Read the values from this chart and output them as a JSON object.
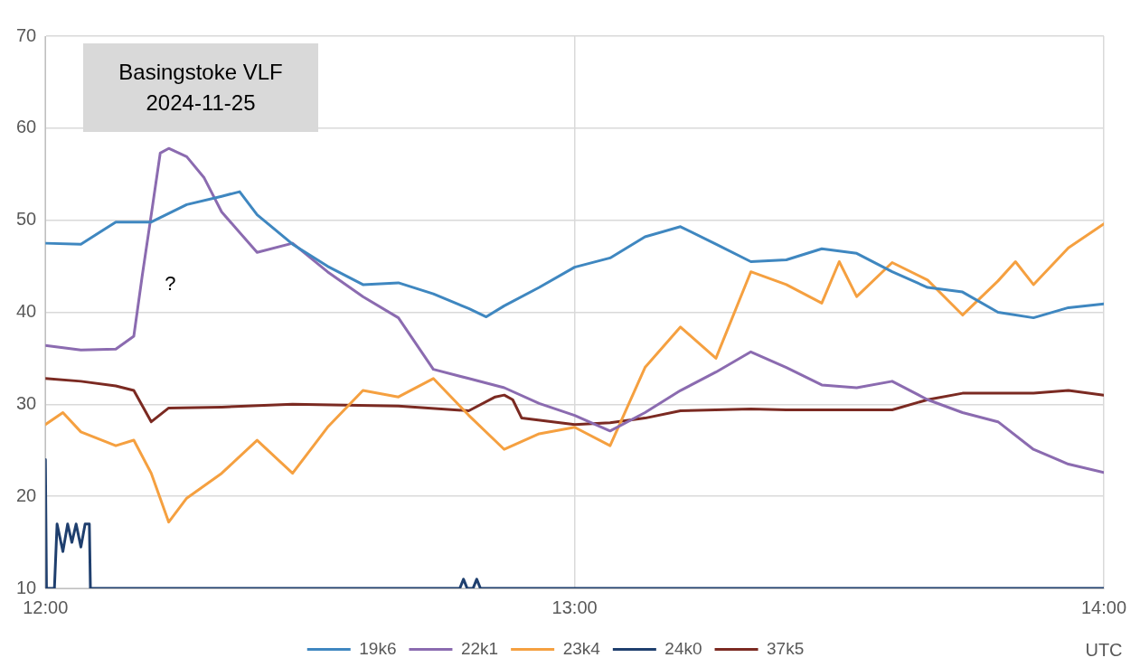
{
  "chart_data": {
    "type": "line",
    "title": "Basingstoke VLF",
    "subtitle": "2024-11-25",
    "xlabel": "UTC",
    "xlim": [
      12,
      14
    ],
    "xticks": [
      {
        "value": 12,
        "label": "12:00"
      },
      {
        "value": 13,
        "label": "13:00"
      },
      {
        "value": 14,
        "label": "14:00"
      }
    ],
    "ylim": [
      10,
      70
    ],
    "yticks": [
      10,
      20,
      30,
      40,
      50,
      60,
      70
    ],
    "grid": true,
    "legend": "bottom",
    "marker": "none",
    "line_style": "solid",
    "annotations": [
      "?"
    ],
    "series": [
      {
        "name": "19k6",
        "color": "#3f87c0",
        "x": [
          12,
          12.067,
          12.133,
          12.2,
          12.267,
          12.333,
          12.367,
          12.4,
          12.467,
          12.533,
          12.6,
          12.667,
          12.733,
          12.8,
          12.833,
          12.867,
          12.933,
          13,
          13.067,
          13.133,
          13.2,
          13.267,
          13.333,
          13.4,
          13.467,
          13.533,
          13.6,
          13.667,
          13.733,
          13.8,
          13.867,
          13.933,
          14
        ],
        "values": [
          47.5,
          47.4,
          49.8,
          49.8,
          51.7,
          52.6,
          53.1,
          50.6,
          47.4,
          45,
          43,
          43.2,
          42,
          40.4,
          39.5,
          40.7,
          42.7,
          44.9,
          45.9,
          48.2,
          49.3,
          47.4,
          45.5,
          45.7,
          46.9,
          46.4,
          44.4,
          42.7,
          42.2,
          40,
          39.4,
          40.5,
          40.9
        ]
      },
      {
        "name": "22k1",
        "color": "#8b6bb0",
        "x": [
          12,
          12.067,
          12.133,
          12.167,
          12.183,
          12.2,
          12.217,
          12.233,
          12.267,
          12.3,
          12.333,
          12.4,
          12.467,
          12.533,
          12.6,
          12.667,
          12.733,
          12.8,
          12.867,
          12.933,
          13,
          13.067,
          13.133,
          13.2,
          13.267,
          13.333,
          13.4,
          13.467,
          13.533,
          13.6,
          13.667,
          13.733,
          13.8,
          13.867,
          13.933,
          14
        ],
        "values": [
          36.4,
          35.9,
          36,
          37.4,
          44,
          50.6,
          57.3,
          57.8,
          56.9,
          54.6,
          50.9,
          46.5,
          47.5,
          44.4,
          41.7,
          39.4,
          33.8,
          32.8,
          31.8,
          30.1,
          28.8,
          27.1,
          29.1,
          31.5,
          33.5,
          35.7,
          34,
          32.1,
          31.8,
          32.5,
          30.5,
          29.1,
          28.1,
          25.1,
          23.5,
          22.6
        ]
      },
      {
        "name": "23k4",
        "color": "#f5a040",
        "x": [
          12,
          12.033,
          12.067,
          12.133,
          12.167,
          12.2,
          12.233,
          12.267,
          12.333,
          12.4,
          12.467,
          12.533,
          12.6,
          12.667,
          12.733,
          12.8,
          12.867,
          12.933,
          13,
          13.067,
          13.133,
          13.2,
          13.267,
          13.333,
          13.4,
          13.467,
          13.5,
          13.533,
          13.6,
          13.667,
          13.733,
          13.8,
          13.833,
          13.867,
          13.933,
          14
        ],
        "values": [
          27.8,
          29.1,
          27,
          25.5,
          26.1,
          22.5,
          17.2,
          19.8,
          22.5,
          26.1,
          22.5,
          27.5,
          31.5,
          30.8,
          32.8,
          28.8,
          25.1,
          26.8,
          27.5,
          25.5,
          34,
          38.4,
          35,
          44.4,
          43,
          41,
          45.5,
          41.7,
          45.4,
          43.5,
          39.7,
          43.4,
          45.5,
          43,
          47,
          49.6
        ]
      },
      {
        "name": "24k0",
        "color": "#1f3f6e",
        "x": [
          12,
          12.002,
          12.017,
          12.022,
          12.033,
          12.042,
          12.05,
          12.058,
          12.067,
          12.075,
          12.083,
          12.085,
          12.5,
          12.783,
          12.79,
          12.797,
          12.808,
          12.815,
          12.822,
          13,
          14
        ],
        "values": [
          24,
          10,
          10,
          17,
          14,
          17,
          15,
          17,
          14.5,
          17,
          17,
          10,
          10,
          10,
          11,
          10,
          10,
          11,
          10,
          10,
          10
        ]
      },
      {
        "name": "37k5",
        "color": "#7b2a22",
        "x": [
          12,
          12.067,
          12.133,
          12.167,
          12.2,
          12.233,
          12.333,
          12.467,
          12.667,
          12.8,
          12.85,
          12.867,
          12.883,
          12.9,
          13,
          13.067,
          13.133,
          13.2,
          13.333,
          13.4,
          13.6,
          13.667,
          13.733,
          13.867,
          13.933,
          14
        ],
        "values": [
          32.8,
          32.5,
          32,
          31.5,
          28.1,
          29.6,
          29.7,
          30,
          29.8,
          29.3,
          30.8,
          31,
          30.5,
          28.5,
          27.8,
          28,
          28.5,
          29.3,
          29.5,
          29.4,
          29.4,
          30.5,
          31.2,
          31.2,
          31.5,
          31
        ]
      }
    ]
  }
}
